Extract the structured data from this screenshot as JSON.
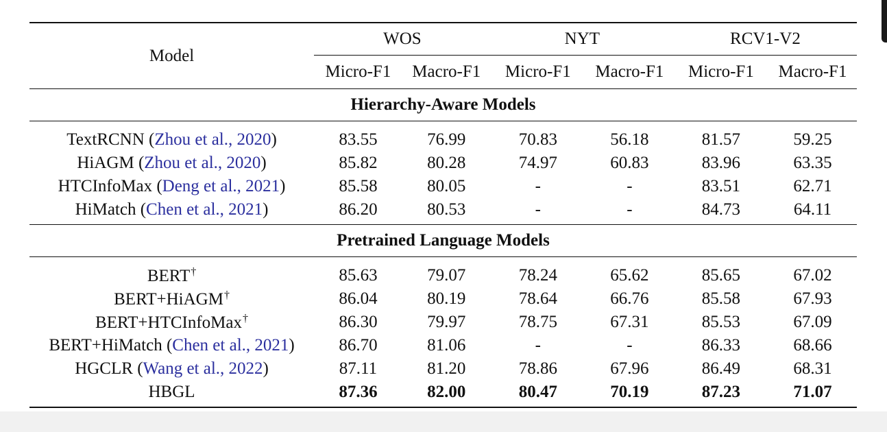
{
  "table": {
    "model_header": "Model",
    "datasets": [
      "WOS",
      "NYT",
      "RCV1-V2"
    ],
    "metrics": [
      "Micro-F1",
      "Macro-F1",
      "Micro-F1",
      "Macro-F1",
      "Micro-F1",
      "Macro-F1"
    ],
    "sections": [
      {
        "title": "Hierarchy-Aware Models",
        "rows": [
          {
            "model": "TextRCNN",
            "cite": "Zhou et al., 2020",
            "dagger": "",
            "values": [
              "83.55",
              "76.99",
              "70.83",
              "56.18",
              "81.57",
              "59.25"
            ]
          },
          {
            "model": "HiAGM",
            "cite": "Zhou et al., 2020",
            "dagger": "",
            "values": [
              "85.82",
              "80.28",
              "74.97",
              "60.83",
              "83.96",
              "63.35"
            ]
          },
          {
            "model": "HTCInfoMax",
            "cite": "Deng et al., 2021",
            "dagger": "",
            "values": [
              "85.58",
              "80.05",
              "-",
              "-",
              "83.51",
              "62.71"
            ]
          },
          {
            "model": "HiMatch",
            "cite": "Chen et al., 2021",
            "dagger": "",
            "values": [
              "86.20",
              "80.53",
              "-",
              "-",
              "84.73",
              "64.11"
            ]
          }
        ]
      },
      {
        "title": "Pretrained Language Models",
        "rows": [
          {
            "model": "BERT",
            "cite": "",
            "dagger": "†",
            "values": [
              "85.63",
              "79.07",
              "78.24",
              "65.62",
              "85.65",
              "67.02"
            ]
          },
          {
            "model": "BERT+HiAGM",
            "cite": "",
            "dagger": "†",
            "values": [
              "86.04",
              "80.19",
              "78.64",
              "66.76",
              "85.58",
              "67.93"
            ]
          },
          {
            "model": "BERT+HTCInfoMax",
            "cite": "",
            "dagger": "†",
            "values": [
              "86.30",
              "79.97",
              "78.75",
              "67.31",
              "85.53",
              "67.09"
            ]
          },
          {
            "model": "BERT+HiMatch",
            "cite": "Chen et al., 2021",
            "dagger": "",
            "values": [
              "86.70",
              "81.06",
              "-",
              "-",
              "86.33",
              "68.66"
            ]
          },
          {
            "model": "HGCLR",
            "cite": "Wang et al., 2022",
            "dagger": "",
            "values": [
              "87.11",
              "81.20",
              "78.86",
              "67.96",
              "86.49",
              "68.31"
            ]
          },
          {
            "model": "HBGL",
            "cite": "",
            "dagger": "",
            "bold": true,
            "values": [
              "87.36",
              "82.00",
              "80.47",
              "70.19",
              "87.23",
              "71.07"
            ]
          }
        ]
      }
    ]
  },
  "colors": {
    "citation": "#2b2f9e",
    "text": "#111111"
  }
}
